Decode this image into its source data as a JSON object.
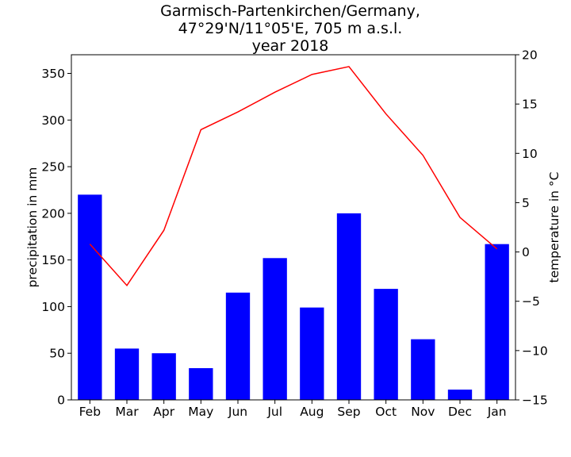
{
  "chart_data": {
    "type": "bar",
    "title": [
      "Garmisch-Partenkirchen/Germany,",
      "47°29'N/11°05'E, 705 m a.s.l.",
      "year 2018"
    ],
    "categories": [
      "Feb",
      "Mar",
      "Apr",
      "May",
      "Jun",
      "Jul",
      "Aug",
      "Sep",
      "Oct",
      "Nov",
      "Dec",
      "Jan"
    ],
    "ylabel": "precipitation in mm",
    "y2label": "temperature in °C",
    "ylim": [
      0,
      370
    ],
    "y2lim": [
      -15,
      20
    ],
    "yticks": [
      0,
      50,
      100,
      150,
      200,
      250,
      300,
      350
    ],
    "y2ticks": [
      -15,
      -10,
      -5,
      0,
      5,
      10,
      15,
      20
    ],
    "grid": false,
    "series": [
      {
        "kind": "bar",
        "axis": "left",
        "color": "#0000ff",
        "values": [
          220,
          55,
          50,
          34,
          115,
          152,
          99,
          200,
          119,
          65,
          11,
          167
        ]
      },
      {
        "kind": "line",
        "axis": "right",
        "color": "#ff0000",
        "values": [
          0.8,
          -3.4,
          2.2,
          12.4,
          14.2,
          16.2,
          18.0,
          18.8,
          14.0,
          9.8,
          3.5,
          0.3
        ]
      }
    ]
  }
}
